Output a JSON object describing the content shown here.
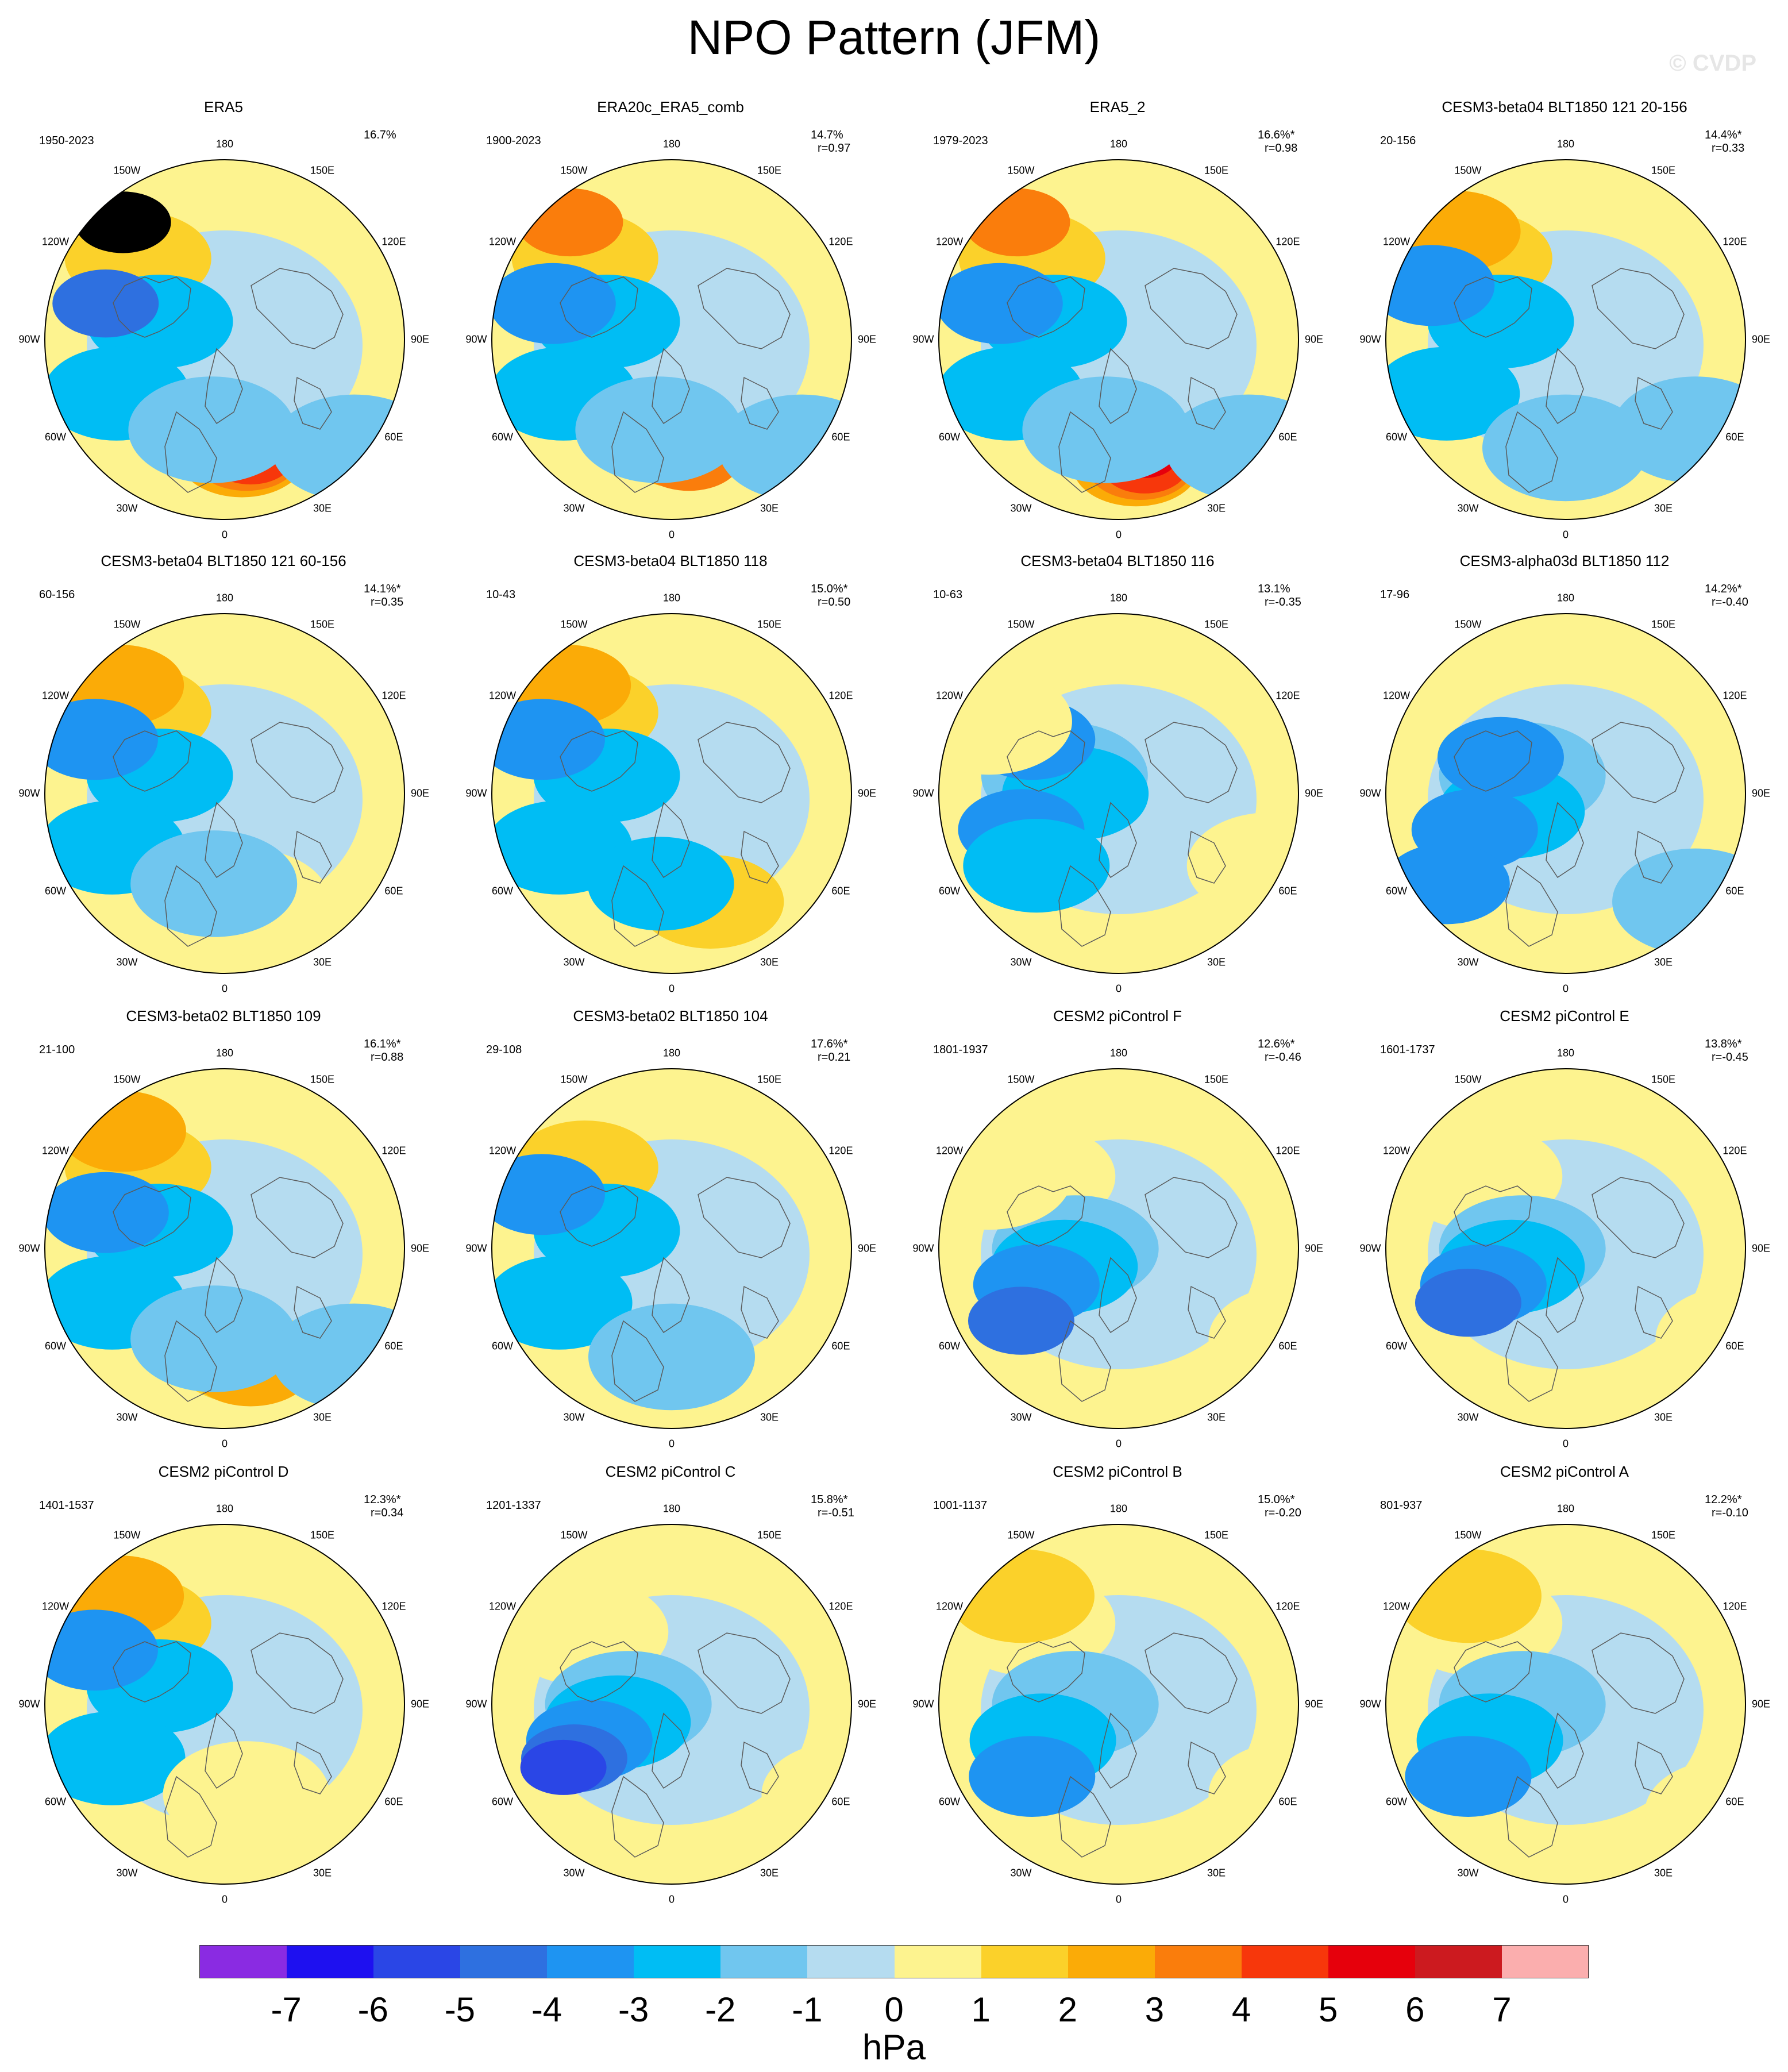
{
  "title": "NPO Pattern (JFM)",
  "watermark": "© CVDP",
  "longitude_labels": [
    "180",
    "150E",
    "120E",
    "90E",
    "60E",
    "30E",
    "0",
    "30W",
    "60W",
    "90W",
    "120W",
    "150W"
  ],
  "colors": {
    "ocean": "#b5dcf0",
    "pos1": "#fdf38f",
    "land_outline": "#5a5a5a"
  },
  "panels": [
    {
      "title": "ERA5",
      "period": "1950-2023",
      "pct": "16.7%",
      "r": "",
      "blobs": [
        [
          -4.5,
          -40,
          2
        ],
        [
          -6.5,
          -47,
          4.5
        ],
        [
          -1,
          -30,
          -2
        ],
        [
          3,
          -50,
          -2
        ],
        [
          -2,
          -55,
          -4
        ],
        [
          6.5,
          8,
          3
        ],
        [
          6.5,
          10,
          4
        ],
        [
          6.5,
          12,
          5
        ],
        [
          5,
          -6,
          -1
        ],
        [
          6,
          60,
          -1
        ]
      ]
    },
    {
      "title": "ERA20c_ERA5_comb",
      "period": "1900-2023",
      "pct": "14.7%",
      "r": "r=0.97",
      "blobs": [
        [
          -4.5,
          -40,
          2
        ],
        [
          -6.5,
          -47,
          4
        ],
        [
          -1,
          -30,
          -2
        ],
        [
          3,
          -50,
          -2
        ],
        [
          -2,
          -55,
          -3
        ],
        [
          6,
          5,
          3
        ],
        [
          6.5,
          8,
          4
        ],
        [
          5,
          -6,
          -1
        ],
        [
          6,
          60,
          -1
        ]
      ]
    },
    {
      "title": "ERA5_2",
      "period": "1979-2023",
      "pct": "16.6%*",
      "r": "r=0.98",
      "blobs": [
        [
          -4.5,
          -40,
          2
        ],
        [
          -6.5,
          -47,
          4
        ],
        [
          -1,
          -30,
          -2
        ],
        [
          3,
          -50,
          -2
        ],
        [
          -2,
          -55,
          -3
        ],
        [
          7,
          8,
          3
        ],
        [
          7,
          10,
          4
        ],
        [
          7,
          12,
          5
        ],
        [
          6.5,
          12,
          6
        ],
        [
          5,
          -6,
          -1
        ],
        [
          6,
          60,
          -1
        ]
      ]
    },
    {
      "title": "CESM3-beta04 BLT1850 121 20-156",
      "period": "20-156",
      "pct": "14.4%*",
      "r": "r=0.33",
      "blobs": [
        [
          -4.5,
          -40,
          2
        ],
        [
          -6,
          -50,
          3
        ],
        [
          -1,
          -30,
          -2
        ],
        [
          3,
          -55,
          -2
        ],
        [
          -3,
          -62,
          -3
        ],
        [
          6,
          0,
          -1
        ],
        [
          5,
          60,
          -1
        ]
      ]
    },
    {
      "title": "CESM3-beta04 BLT1850 121 60-156",
      "period": "60-156",
      "pct": "14.1%*",
      "r": "r=0.35",
      "blobs": [
        [
          -4.5,
          -40,
          2
        ],
        [
          -6,
          -48,
          3
        ],
        [
          -1,
          -30,
          -2
        ],
        [
          3,
          -52,
          -2
        ],
        [
          -3,
          -60,
          -3
        ],
        [
          6,
          10,
          1
        ],
        [
          5,
          -5,
          -1
        ]
      ]
    },
    {
      "title": "CESM3-beta04 BLT1850 118",
      "period": "10-43",
      "pct": "15.0%*",
      "r": "r=0.50",
      "blobs": [
        [
          -4.5,
          -40,
          2
        ],
        [
          -6,
          -48,
          3
        ],
        [
          -1,
          -30,
          -2
        ],
        [
          3,
          -52,
          -2
        ],
        [
          -3,
          -60,
          -3
        ],
        [
          7,
          15,
          1
        ],
        [
          6,
          18,
          2
        ],
        [
          5,
          -5,
          -2
        ]
      ]
    },
    {
      "title": "CESM3-beta04 BLT1850 116",
      "period": "10-63",
      "pct": "13.1%",
      "r": "r=-0.35",
      "blobs": [
        [
          -1,
          -25,
          -1
        ],
        [
          0,
          -20,
          -2
        ],
        [
          2,
          -45,
          -3
        ],
        [
          -3,
          -40,
          -3
        ],
        [
          4,
          -38,
          -2
        ],
        [
          4,
          70,
          1
        ],
        [
          -4,
          -60,
          1
        ]
      ]
    },
    {
      "title": "CESM3-alpha03d BLT1850 112",
      "period": "17-96",
      "pct": "14.2%*",
      "r": "r=-0.40",
      "blobs": [
        [
          -1,
          -20,
          -1
        ],
        [
          1,
          -25,
          -2
        ],
        [
          2,
          -42,
          -3
        ],
        [
          -2,
          -30,
          -3
        ],
        [
          5,
          -55,
          -3
        ],
        [
          6,
          60,
          -1
        ]
      ]
    },
    {
      "title": "CESM3-beta02 BLT1850 109",
      "period": "21-100",
      "pct": "16.1%*",
      "r": "r=0.88",
      "blobs": [
        [
          -4.5,
          -40,
          2
        ],
        [
          -6.5,
          -47,
          3
        ],
        [
          -1,
          -30,
          -2
        ],
        [
          3,
          -52,
          -2
        ],
        [
          -2,
          -55,
          -3
        ],
        [
          6,
          10,
          2
        ],
        [
          6.5,
          12,
          3
        ],
        [
          5,
          -5,
          -1
        ],
        [
          6,
          60,
          -1
        ]
      ]
    },
    {
      "title": "CESM3-beta02 BLT1850 104",
      "period": "29-108",
      "pct": "17.6%*",
      "r": "r=0.21",
      "blobs": [
        [
          -4.5,
          -40,
          2
        ],
        [
          -1,
          -30,
          -2
        ],
        [
          3,
          -52,
          -2
        ],
        [
          -3,
          -60,
          -3
        ],
        [
          6,
          0,
          -1
        ]
      ]
    },
    {
      "title": "CESM2 piControl F",
      "period": "1801-1937",
      "pct": "12.6%*",
      "r": "r=-0.46",
      "blobs": [
        [
          -4,
          -40,
          1
        ],
        [
          0,
          -20,
          -1
        ],
        [
          1,
          -25,
          -2
        ],
        [
          2,
          -38,
          -3
        ],
        [
          4,
          -45,
          -4
        ],
        [
          5,
          80,
          1
        ],
        [
          -4,
          -60,
          1
        ]
      ]
    },
    {
      "title": "CESM2 piControl E",
      "period": "1601-1737",
      "pct": "13.8%*",
      "r": "r=-0.45",
      "blobs": [
        [
          -4,
          -40,
          1
        ],
        [
          0,
          -20,
          -1
        ],
        [
          1,
          -25,
          -2
        ],
        [
          2,
          -38,
          -3
        ],
        [
          3,
          -45,
          -4
        ],
        [
          5,
          80,
          1
        ]
      ]
    },
    {
      "title": "CESM2 piControl D",
      "period": "1401-1537",
      "pct": "12.3%*",
      "r": "r=0.34",
      "blobs": [
        [
          -4.5,
          -40,
          2
        ],
        [
          -6,
          -48,
          3
        ],
        [
          -1,
          -30,
          -2
        ],
        [
          3,
          -52,
          -2
        ],
        [
          -3,
          -60,
          -3
        ],
        [
          5,
          10,
          1
        ]
      ]
    },
    {
      "title": "CESM2 piControl C",
      "period": "1201-1337",
      "pct": "15.8%*",
      "r": "r=-0.51",
      "blobs": [
        [
          -4,
          -40,
          1
        ],
        [
          0,
          -20,
          -1
        ],
        [
          1,
          -25,
          -2
        ],
        [
          2,
          -38,
          -3
        ],
        [
          3,
          -45,
          -4
        ],
        [
          3.5,
          -50,
          -5
        ],
        [
          5,
          80,
          1
        ]
      ]
    },
    {
      "title": "CESM2 piControl B",
      "period": "1001-1137",
      "pct": "15.0%*",
      "r": "r=-0.20",
      "blobs": [
        [
          -4.5,
          -40,
          1
        ],
        [
          -6,
          -45,
          2
        ],
        [
          0,
          -20,
          -1
        ],
        [
          2,
          -35,
          -2
        ],
        [
          4,
          -40,
          -3
        ],
        [
          5,
          80,
          1
        ]
      ]
    },
    {
      "title": "CESM2 piControl A",
      "period": "801-937",
      "pct": "12.2%*",
      "r": "r=-0.10",
      "blobs": [
        [
          -4.5,
          -40,
          1
        ],
        [
          -6,
          -45,
          2
        ],
        [
          0,
          -20,
          -1
        ],
        [
          2,
          -35,
          -2
        ],
        [
          4,
          -45,
          -3
        ],
        [
          6,
          75,
          1
        ]
      ]
    }
  ],
  "colorbar": {
    "unit": "hPa",
    "ticks": [
      "-7",
      "-6",
      "-5",
      "-4",
      "-3",
      "-2",
      "-1",
      "0",
      "1",
      "2",
      "3",
      "4",
      "5",
      "6",
      "7"
    ],
    "colors": [
      "#8a2be2",
      "#1e10f0",
      "#2a46e6",
      "#2e70e0",
      "#1e94f2",
      "#00bdf4",
      "#70c6ef",
      "#b5dcf0",
      "#fdf38f",
      "#fbd12a",
      "#fbab07",
      "#fa7d0c",
      "#f7370b",
      "#e6000c",
      "#cc1a1f",
      "#fbaeae"
    ]
  }
}
